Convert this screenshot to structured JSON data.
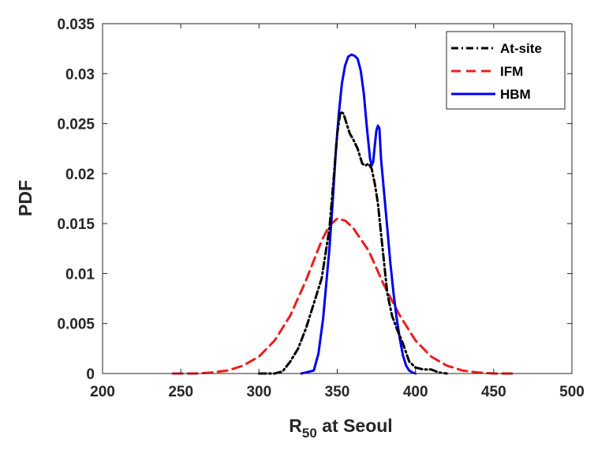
{
  "chart_data": {
    "type": "line",
    "xlabel_main": "R",
    "xlabel_sub": "50",
    "xlabel_rest": " at Seoul",
    "ylabel": "PDF",
    "xlim": [
      200,
      500
    ],
    "ylim": [
      0,
      0.035
    ],
    "xticks": [
      200,
      250,
      300,
      350,
      400,
      450,
      500
    ],
    "yticks": [
      0,
      0.005,
      0.01,
      0.015,
      0.02,
      0.025,
      0.03,
      0.035
    ],
    "xtick_labels": [
      "200",
      "250",
      "300",
      "350",
      "400",
      "450",
      "500"
    ],
    "ytick_labels": [
      "0",
      "0.005",
      "0.01",
      "0.015",
      "0.02",
      "0.025",
      "0.03",
      "0.035"
    ],
    "legend_position": "top-right",
    "series": [
      {
        "name": "At-site",
        "color": "#000000",
        "style": "dashdot",
        "x": [
          300,
          305,
          310,
          315,
          320,
          325,
          330,
          335,
          340,
          345,
          348,
          350,
          352,
          354,
          356,
          358,
          360,
          363,
          366,
          368,
          370,
          372,
          374,
          376,
          378,
          380,
          382,
          385,
          388,
          392,
          396,
          400,
          405,
          410,
          415,
          420
        ],
        "y": [
          0,
          0,
          0,
          0.0002,
          0.0012,
          0.0025,
          0.0045,
          0.007,
          0.0095,
          0.0145,
          0.02,
          0.024,
          0.0262,
          0.026,
          0.025,
          0.024,
          0.0235,
          0.0225,
          0.021,
          0.0208,
          0.021,
          0.0205,
          0.019,
          0.017,
          0.014,
          0.011,
          0.008,
          0.0058,
          0.0045,
          0.003,
          0.0012,
          0.0006,
          0.0004,
          0.0004,
          0.0001,
          0
        ]
      },
      {
        "name": "IFM",
        "color": "#ee1c1c",
        "style": "dashed",
        "x": [
          245,
          260,
          270,
          280,
          290,
          300,
          310,
          320,
          330,
          340,
          345,
          350,
          355,
          360,
          370,
          380,
          390,
          400,
          410,
          420,
          430,
          440,
          450,
          465
        ],
        "y": [
          0,
          0,
          0.0001,
          0.0003,
          0.0008,
          0.0017,
          0.0033,
          0.0058,
          0.0093,
          0.0133,
          0.0148,
          0.0155,
          0.0153,
          0.0146,
          0.0123,
          0.0088,
          0.0058,
          0.0033,
          0.0017,
          0.0008,
          0.0003,
          0.0001,
          0,
          0
        ]
      },
      {
        "name": "HBM",
        "color": "#0000ee",
        "style": "solid",
        "x": [
          327,
          330,
          335,
          338,
          341,
          343,
          345,
          347,
          349,
          351,
          353,
          355,
          357,
          359,
          361,
          363,
          365,
          367,
          369,
          371,
          372,
          373,
          374,
          375,
          376,
          377,
          378,
          380,
          382,
          384,
          386,
          388,
          390,
          392,
          394,
          396,
          398,
          400
        ],
        "y": [
          0,
          0.0001,
          0.0003,
          0.002,
          0.0055,
          0.009,
          0.0125,
          0.017,
          0.022,
          0.026,
          0.029,
          0.0308,
          0.0317,
          0.0319,
          0.0318,
          0.0315,
          0.0303,
          0.028,
          0.0245,
          0.0215,
          0.0208,
          0.0212,
          0.0228,
          0.0243,
          0.0248,
          0.0245,
          0.0215,
          0.018,
          0.0145,
          0.011,
          0.008,
          0.0055,
          0.0035,
          0.0018,
          0.0008,
          0.0003,
          0.0001,
          0
        ]
      }
    ]
  }
}
